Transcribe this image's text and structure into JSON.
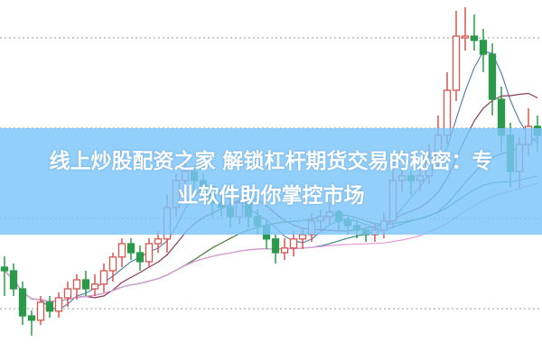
{
  "headline": {
    "line1": "线上炒股配资之家 解锁杠杆期货交易的秘密：专",
    "line2": "业软件助你掌控市场"
  },
  "colors": {
    "up": "#d9534f",
    "down": "#2a9a4a",
    "banner": "#7ac4fa",
    "grid": "#999999",
    "ma5": "#5a82b0",
    "ma10": "#8b3a5a",
    "ma20": "#4a7a3a",
    "ma60": "#3a8a8a",
    "ma_long": "#e49ad8"
  },
  "chart_data": {
    "type": "candlestick",
    "title": "",
    "grid": true,
    "ylim": [
      0,
      100
    ],
    "moving_averages": [
      "ma5",
      "ma10",
      "ma20",
      "ma60",
      "ma_long"
    ],
    "candles": [
      [
        26,
        29,
        18,
        25
      ],
      [
        25,
        27,
        18,
        20
      ],
      [
        20,
        22,
        10,
        12.5
      ],
      [
        12.5,
        14,
        7,
        11.3
      ],
      [
        11.3,
        18,
        10,
        16.3
      ],
      [
        16.3,
        18,
        12,
        13.8
      ],
      [
        13.8,
        19,
        12,
        17.5
      ],
      [
        17.5,
        22,
        15,
        20
      ],
      [
        20,
        24,
        17,
        22.5
      ],
      [
        22.5,
        25,
        18,
        20
      ],
      [
        20,
        24,
        18,
        21.3
      ],
      [
        21.3,
        27,
        19,
        25
      ],
      [
        25,
        30,
        22,
        28.8
      ],
      [
        28.8,
        34,
        26,
        32.5
      ],
      [
        32.5,
        34,
        28,
        30
      ],
      [
        30,
        32,
        25,
        27.5
      ],
      [
        27.5,
        34,
        26,
        32.5
      ],
      [
        32.5,
        36,
        30,
        33.8
      ],
      [
        33.8,
        46,
        30,
        42.5
      ],
      [
        42.5,
        52,
        40,
        50
      ],
      [
        50,
        56,
        47,
        52.5
      ],
      [
        52.5,
        54,
        46,
        50
      ],
      [
        50,
        52,
        44,
        46.3
      ],
      [
        46.3,
        48,
        40,
        43.8
      ],
      [
        43.8,
        46,
        40,
        42.5
      ],
      [
        42.5,
        44,
        37,
        40
      ],
      [
        40,
        46,
        38,
        43.8
      ],
      [
        43.8,
        45,
        37,
        40
      ],
      [
        40,
        42,
        35,
        37.5
      ],
      [
        37.5,
        39,
        31,
        33.8
      ],
      [
        33.8,
        35,
        27,
        30
      ],
      [
        30,
        34,
        28,
        31.3
      ],
      [
        31.3,
        36,
        29,
        33.8
      ],
      [
        33.8,
        37,
        31,
        35
      ],
      [
        35,
        41,
        33,
        38.8
      ],
      [
        38.8,
        42,
        36,
        40
      ],
      [
        40,
        44,
        38,
        41.3
      ],
      [
        41.3,
        42,
        36,
        38.8
      ],
      [
        38.8,
        40,
        35,
        37.5
      ],
      [
        37.5,
        39,
        34,
        36.3
      ],
      [
        36.3,
        37,
        33,
        35
      ],
      [
        35,
        38,
        33,
        36.3
      ],
      [
        36.3,
        41,
        34,
        38.8
      ],
      [
        38.8,
        55,
        37,
        50
      ],
      [
        50,
        53,
        47,
        51.3
      ],
      [
        51.3,
        53,
        46,
        50
      ],
      [
        50,
        54,
        47,
        51.3
      ],
      [
        51.3,
        60,
        49,
        56.3
      ],
      [
        56.3,
        68,
        54,
        62.5
      ],
      [
        62.5,
        80,
        60,
        75
      ],
      [
        75,
        97,
        72,
        90
      ],
      [
        90,
        98,
        86,
        90
      ],
      [
        90,
        96,
        86,
        88.8
      ],
      [
        88.8,
        92,
        80,
        85
      ],
      [
        85,
        88,
        68,
        72.5
      ],
      [
        72.5,
        76,
        58,
        62.5
      ],
      [
        62.5,
        66,
        48,
        52.5
      ],
      [
        52.5,
        62,
        48,
        60
      ],
      [
        60,
        70,
        57,
        65
      ],
      [
        65,
        68,
        58,
        62.5
      ]
    ]
  }
}
